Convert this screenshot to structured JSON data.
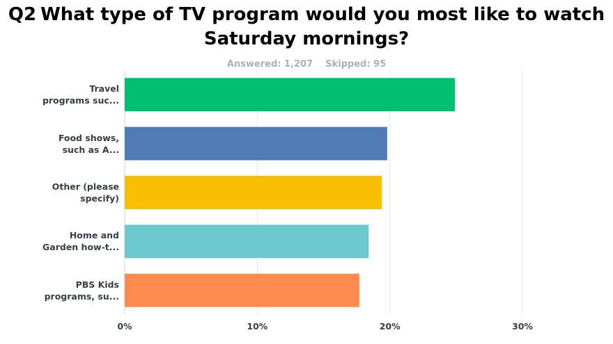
{
  "header": {
    "question_number": "Q2",
    "question_text": "What type of TV program would you most like to watch Saturday mornings?",
    "answered": "Answered: 1,207",
    "skipped": "Skipped: 95"
  },
  "chart_data": {
    "type": "bar",
    "orientation": "horizontal",
    "categories": [
      "Travel programs suc...",
      "Food shows, such as A...",
      "Other (please specify)",
      "Home and Garden how-t...",
      "PBS Kids programs, su..."
    ],
    "category_lines": [
      [
        "Travel",
        "programs suc..."
      ],
      [
        "Food shows,",
        "such as A..."
      ],
      [
        "Other (please",
        "specify)"
      ],
      [
        "Home and",
        "Garden how-t..."
      ],
      [
        "PBS Kids",
        "programs, su..."
      ]
    ],
    "values": [
      24.9,
      19.8,
      19.4,
      18.4,
      17.7
    ],
    "unit": "%",
    "colors": [
      "#00bf6f",
      "#507cb6",
      "#f9be00",
      "#6bc8cd",
      "#ff8b4f"
    ],
    "xlim": [
      0,
      30
    ],
    "x_ticks": [
      0,
      10,
      20,
      30
    ],
    "x_tick_labels": [
      "0%",
      "10%",
      "20%",
      "30%"
    ],
    "grid": true
  }
}
